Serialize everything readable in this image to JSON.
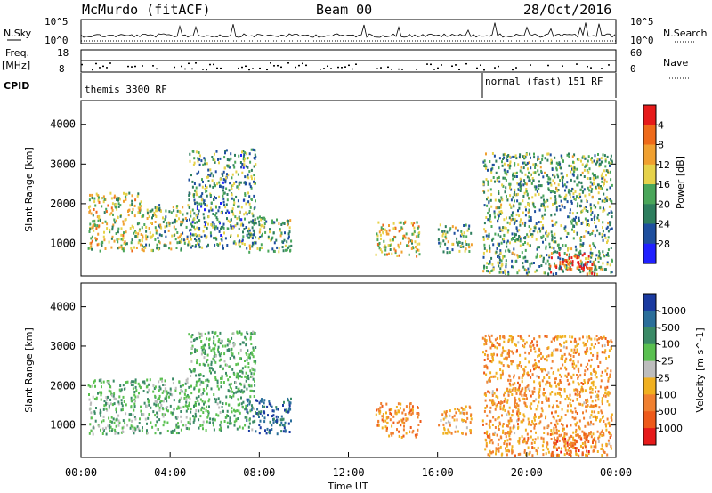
{
  "header": {
    "station": "McMurdo (fitACF)",
    "beam": "Beam 00",
    "date": "28/Oct/2016"
  },
  "side_labels": {
    "nsky": "N.Sky",
    "nsearch": "N.Search",
    "nave": "Nave",
    "freq_top": "Freq.",
    "freq_unit": "[MHz]",
    "cpid": "CPID",
    "nsky_ticks": [
      "10^5",
      "10^0"
    ],
    "nsearch_ticks": [
      "10^5",
      "10^0"
    ],
    "freq_ticks": [
      "18",
      "8"
    ],
    "nave_ticks": [
      "60",
      "0"
    ]
  },
  "cpid_labels": [
    {
      "text": "themis 3300 RF",
      "start_hour": 0
    },
    {
      "text": "normal (fast) 151 RF",
      "start_hour": 18
    }
  ],
  "time_axis": {
    "label": "Time UT",
    "ticks": [
      "00:00",
      "04:00",
      "08:00",
      "12:00",
      "16:00",
      "20:00",
      "00:00"
    ]
  },
  "chart_data": [
    {
      "type": "heatmap",
      "name": "power",
      "ylabel": "Slant Range [km]",
      "x_range_hours": [
        0,
        24
      ],
      "ylim": [
        180,
        4600
      ],
      "y_ticks": [
        1000,
        2000,
        3000,
        4000
      ],
      "colorbar": {
        "label": "Power [dB]",
        "ticks": [
          "4",
          "8",
          "12",
          "16",
          "20",
          "24",
          "28"
        ],
        "range": [
          0,
          30
        ],
        "colors": [
          "#2020ff",
          "#1e4f9e",
          "#2e7e5e",
          "#4aa65a",
          "#e6d24a",
          "#f0a030",
          "#ee6a1a",
          "#e61a1a"
        ]
      },
      "clusters": [
        {
          "t": [
            0.3,
            2.8
          ],
          "r": [
            800,
            2300
          ],
          "level": 0.55
        },
        {
          "t": [
            2.8,
            4.8
          ],
          "r": [
            850,
            2000
          ],
          "level": 0.45
        },
        {
          "t": [
            4.8,
            7.8
          ],
          "r": [
            900,
            3400
          ],
          "level": 0.35
        },
        {
          "t": [
            7.4,
            9.4
          ],
          "r": [
            800,
            1700
          ],
          "level": 0.4
        },
        {
          "t": [
            13.2,
            15.2
          ],
          "r": [
            700,
            1600
          ],
          "level": 0.6
        },
        {
          "t": [
            16.0,
            17.5
          ],
          "r": [
            800,
            1500
          ],
          "level": 0.45
        },
        {
          "t": [
            18.0,
            23.8
          ],
          "r": [
            250,
            3300
          ],
          "level": 0.4
        },
        {
          "t": [
            21.0,
            23.0
          ],
          "r": [
            250,
            800
          ],
          "level": 0.85
        }
      ]
    },
    {
      "type": "heatmap",
      "name": "velocity",
      "ylabel": "Slant Range [km]",
      "x_range_hours": [
        0,
        24
      ],
      "ylim": [
        180,
        4600
      ],
      "y_ticks": [
        1000,
        2000,
        3000,
        4000
      ],
      "colorbar": {
        "label": "Velocity [m s^-1]",
        "ticks": [
          "1000",
          "500",
          "100",
          "25",
          "-25",
          "-100",
          "-500",
          "-1000"
        ],
        "range": [
          -1000,
          1000
        ],
        "colors": [
          "#1a3aa0",
          "#2a6e9a",
          "#3a8a66",
          "#5ac050",
          "#bdbdbd",
          "#f0b020",
          "#f08030",
          "#ee5a1a",
          "#e61a1a"
        ]
      },
      "clusters": [
        {
          "t": [
            0.3,
            4.8
          ],
          "r": [
            800,
            2200
          ],
          "v": 250
        },
        {
          "t": [
            4.8,
            7.8
          ],
          "r": [
            900,
            3400
          ],
          "v": 300
        },
        {
          "t": [
            7.4,
            9.4
          ],
          "r": [
            800,
            1700
          ],
          "v": 700
        },
        {
          "t": [
            13.2,
            15.2
          ],
          "r": [
            700,
            1600
          ],
          "v": -400
        },
        {
          "t": [
            16.0,
            17.5
          ],
          "r": [
            800,
            1500
          ],
          "v": -300
        },
        {
          "t": [
            18.0,
            23.8
          ],
          "r": [
            250,
            3300
          ],
          "v": -350
        },
        {
          "t": [
            21.0,
            23.0
          ],
          "r": [
            250,
            800
          ],
          "v": -600
        }
      ]
    }
  ]
}
